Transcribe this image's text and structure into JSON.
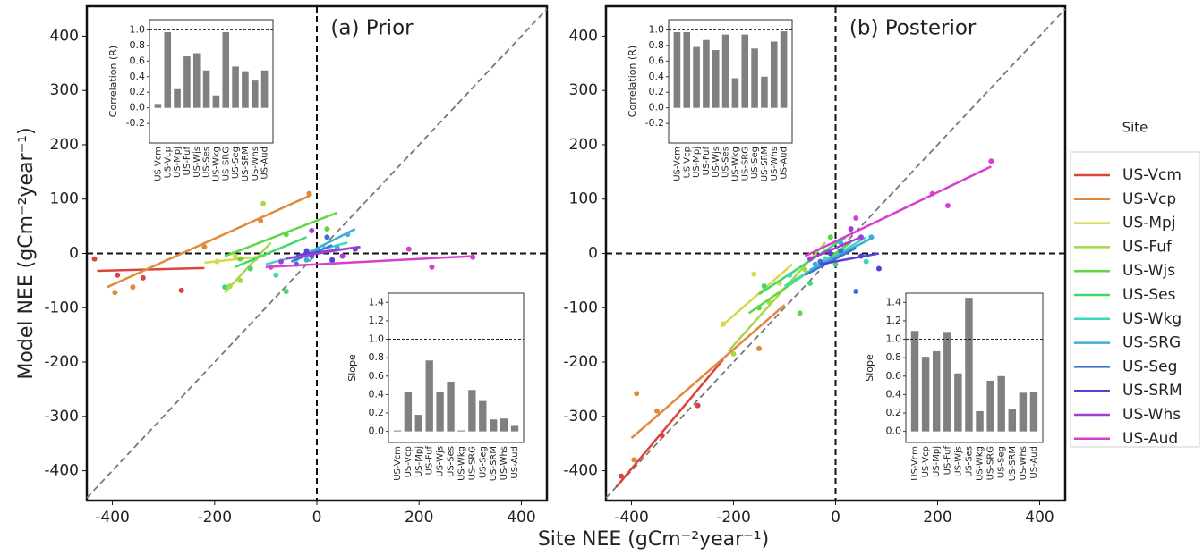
{
  "chart_data": [
    {
      "type": "scatter",
      "title": "(a) Prior",
      "xlabel": "Site NEE (gCm⁻²year⁻¹)",
      "ylabel": "Model NEE (gCm⁻²year⁻¹)",
      "xlim": [
        -450,
        450
      ],
      "ylim": [
        -455,
        455
      ],
      "xticks": [
        -400,
        -200,
        0,
        200,
        400
      ],
      "yticks": [
        -400,
        -300,
        -200,
        -100,
        0,
        100,
        200,
        300,
        400
      ],
      "series": [
        {
          "name": "US-Vcm",
          "color": "#d9453a",
          "x": [
            -435,
            -390,
            -340,
            -265
          ],
          "values": [
            -10,
            -40,
            -45,
            -68
          ],
          "fit_x": [
            -430,
            -220
          ],
          "fit_values": [
            -32,
            -27
          ]
        },
        {
          "name": "US-Vcp",
          "color": "#e08a3c",
          "x": [
            -395,
            -360,
            -220,
            -110,
            -15
          ],
          "values": [
            -72,
            -62,
            12,
            60,
            110
          ],
          "fit_x": [
            -410,
            -10
          ],
          "fit_values": [
            -62,
            108
          ]
        },
        {
          "name": "US-Mpj",
          "color": "#d8d84a",
          "x": [
            -195,
            -160,
            -120
          ],
          "values": [
            -15,
            -5,
            -10
          ],
          "fit_x": [
            -220,
            -100
          ],
          "fit_values": [
            -17,
            -5
          ]
        },
        {
          "name": "US-Fuf",
          "color": "#a8d84a",
          "x": [
            -170,
            -150,
            -105
          ],
          "values": [
            -60,
            -50,
            92
          ],
          "fit_x": [
            -180,
            -90
          ],
          "fit_values": [
            -72,
            20
          ]
        },
        {
          "name": "US-Wjs",
          "color": "#5fd83e",
          "x": [
            -150,
            -60,
            20
          ],
          "values": [
            -10,
            35,
            45
          ],
          "fit_x": [
            -180,
            40
          ],
          "fit_values": [
            -5,
            75
          ]
        },
        {
          "name": "US-Ses",
          "color": "#3ed86e",
          "x": [
            -180,
            -130,
            -60
          ],
          "values": [
            -62,
            -28,
            -70
          ],
          "fit_x": [
            -160,
            -20
          ],
          "fit_values": [
            -25,
            30
          ]
        },
        {
          "name": "US-Wkg",
          "color": "#3ed8c2",
          "x": [
            -80,
            -40,
            30
          ],
          "values": [
            -40,
            -10,
            -15
          ],
          "fit_x": [
            -100,
            60
          ],
          "fit_values": [
            -20,
            20
          ]
        },
        {
          "name": "US-SRG",
          "color": "#3eaed8",
          "x": [
            -20,
            40,
            60
          ],
          "values": [
            -12,
            10,
            35
          ],
          "fit_x": [
            -30,
            75
          ],
          "fit_values": [
            -5,
            45
          ]
        },
        {
          "name": "US-Seg",
          "color": "#3e6ed8",
          "x": [
            -40,
            -10,
            20
          ],
          "values": [
            -20,
            -5,
            30
          ],
          "fit_x": [
            -50,
            30
          ],
          "fit_values": [
            -15,
            15
          ]
        },
        {
          "name": "US-SRM",
          "color": "#5a3ed8",
          "x": [
            -20,
            30,
            75
          ],
          "values": [
            5,
            -12,
            8
          ],
          "fit_x": [
            -40,
            85
          ],
          "fit_values": [
            -3,
            12
          ]
        },
        {
          "name": "US-Whs",
          "color": "#a03ed8",
          "x": [
            -70,
            -10,
            50
          ],
          "values": [
            -15,
            42,
            -5
          ],
          "fit_x": [
            -60,
            80
          ],
          "fit_values": [
            -10,
            12
          ]
        },
        {
          "name": "US-Aud",
          "color": "#d83ed0",
          "x": [
            -90,
            180,
            225,
            305
          ],
          "values": [
            -25,
            8,
            -25,
            -7
          ],
          "fit_x": [
            -100,
            305
          ],
          "fit_values": [
            -25,
            -5
          ]
        }
      ]
    },
    {
      "type": "scatter",
      "title": "(b) Posterior",
      "legend_title": "Site",
      "xlim": [
        -450,
        450
      ],
      "ylim": [
        -455,
        455
      ],
      "xticks": [
        -400,
        -200,
        0,
        200,
        400
      ],
      "yticks": [
        -400,
        -300,
        -200,
        -100,
        0,
        100,
        200,
        300,
        400
      ],
      "series": [
        {
          "name": "US-Vcm",
          "color": "#d9453a",
          "x": [
            -420,
            -340,
            -270
          ],
          "values": [
            -410,
            -335,
            -280
          ],
          "fit_x": [
            -430,
            -220
          ],
          "fit_values": [
            -430,
            -195
          ]
        },
        {
          "name": "US-Vcp",
          "color": "#e08a3c",
          "x": [
            -395,
            -390,
            -350,
            -150
          ],
          "values": [
            -380,
            -258,
            -290,
            -175
          ],
          "fit_x": [
            -400,
            -100
          ],
          "fit_values": [
            -340,
            -95
          ]
        },
        {
          "name": "US-Mpj",
          "color": "#d8d84a",
          "x": [
            -220,
            -160,
            -110
          ],
          "values": [
            -130,
            -38,
            -55
          ],
          "fit_x": [
            -225,
            -85
          ],
          "fit_values": [
            -135,
            -20
          ]
        },
        {
          "name": "US-Fuf",
          "color": "#a8d84a",
          "x": [
            -200,
            -130,
            -60
          ],
          "values": [
            -185,
            -90,
            -30
          ],
          "fit_x": [
            -210,
            -20
          ],
          "fit_values": [
            -180,
            20
          ]
        },
        {
          "name": "US-Wjs",
          "color": "#5fd83e",
          "x": [
            -150,
            -70,
            -10
          ],
          "values": [
            -100,
            -110,
            30
          ],
          "fit_x": [
            -170,
            30
          ],
          "fit_values": [
            -110,
            20
          ]
        },
        {
          "name": "US-Ses",
          "color": "#3ed86e",
          "x": [
            -140,
            -50,
            0
          ],
          "values": [
            -60,
            -55,
            -20
          ],
          "fit_x": [
            -150,
            20
          ],
          "fit_values": [
            -75,
            30
          ]
        },
        {
          "name": "US-Wkg",
          "color": "#3ed8c2",
          "x": [
            -90,
            -20,
            60
          ],
          "values": [
            -40,
            -10,
            -15
          ],
          "fit_x": [
            -100,
            60
          ],
          "fit_values": [
            -60,
            30
          ]
        },
        {
          "name": "US-SRG",
          "color": "#3eaed8",
          "x": [
            -40,
            10,
            70
          ],
          "values": [
            -20,
            20,
            30
          ],
          "fit_x": [
            -50,
            75
          ],
          "fit_values": [
            -30,
            30
          ]
        },
        {
          "name": "US-Seg",
          "color": "#3e6ed8",
          "x": [
            -30,
            40,
            10
          ],
          "values": [
            -15,
            -70,
            5
          ],
          "fit_x": [
            -60,
            40
          ],
          "fit_values": [
            -40,
            10
          ]
        },
        {
          "name": "US-SRM",
          "color": "#5a3ed8",
          "x": [
            -10,
            50,
            85
          ],
          "values": [
            0,
            -5,
            -28
          ],
          "fit_x": [
            -30,
            85
          ],
          "fit_values": [
            -20,
            0
          ]
        },
        {
          "name": "US-Whs",
          "color": "#a03ed8",
          "x": [
            -50,
            30,
            50
          ],
          "values": [
            -10,
            45,
            30
          ],
          "fit_x": [
            -50,
            50
          ],
          "fit_values": [
            -10,
            30
          ]
        },
        {
          "name": "US-Aud",
          "color": "#d83ed0",
          "x": [
            40,
            190,
            220,
            305
          ],
          "values": [
            65,
            110,
            88,
            170
          ],
          "fit_x": [
            -60,
            305
          ],
          "fit_values": [
            -5,
            160
          ]
        }
      ]
    },
    {
      "type": "bar",
      "ylabel": "Correlation (R)",
      "color": "#808080",
      "hline": 1.0,
      "ylim": [
        -0.45,
        1.13
      ],
      "yticks": [
        -0.2,
        {
          "value": 0,
          "label": "0.0"
        },
        0.2,
        0.4,
        0.6,
        0.8,
        {
          "value": 1,
          "label": "1.0"
        }
      ],
      "categories": [
        "US-Vcm",
        "US-Vcp",
        "US-Mpj",
        "US-Fuf",
        "US-Wjs",
        "US-Ses",
        "US-Wkg",
        "US-SRG",
        "US-Seg",
        "US-SRM",
        "US-Whs",
        "US-Aud"
      ],
      "values": [
        0.05,
        0.97,
        0.24,
        0.66,
        0.7,
        0.48,
        0.16,
        0.97,
        0.53,
        0.47,
        0.35,
        0.48
      ]
    },
    {
      "type": "bar",
      "ylabel": "Slope",
      "color": "#808080",
      "hline": 1.0,
      "ylim": [
        -0.12,
        1.5
      ],
      "yticks": [
        {
          "value": 0,
          "label": "0.0"
        },
        0.2,
        0.4,
        0.6,
        0.8,
        {
          "value": 1,
          "label": "1.0"
        },
        1.2,
        1.4
      ],
      "categories": [
        "US-Vcm",
        "US-Vcp",
        "US-Mpj",
        "US-Fuf",
        "US-Wjs",
        "US-Ses",
        "US-Wkg",
        "US-SRG",
        "US-Seg",
        "US-SRM",
        "US-Whs",
        "US-Aud"
      ],
      "values": [
        0.01,
        0.43,
        0.18,
        0.77,
        0.43,
        0.54,
        0.01,
        0.45,
        0.33,
        0.13,
        0.14,
        0.06
      ]
    },
    {
      "type": "bar",
      "ylabel": "Correlation (R)",
      "color": "#808080",
      "hline": 1.0,
      "ylim": [
        -0.45,
        1.13
      ],
      "yticks": [
        -0.2,
        {
          "value": 0,
          "label": "0.0"
        },
        0.2,
        0.4,
        0.6,
        0.8,
        {
          "value": 1,
          "label": "1.0"
        }
      ],
      "categories": [
        "US-Vcm",
        "US-Vcp",
        "US-Mpj",
        "US-Fuf",
        "US-Wjs",
        "US-Ses",
        "US-Wkg",
        "US-SRG",
        "US-Seg",
        "US-SRM",
        "US-Whs",
        "US-Aud"
      ],
      "values": [
        0.97,
        0.97,
        0.78,
        0.87,
        0.74,
        0.94,
        0.38,
        0.94,
        0.76,
        0.4,
        0.85,
        0.98
      ]
    },
    {
      "type": "bar",
      "ylabel": "Slope",
      "color": "#808080",
      "hline": 1.0,
      "ylim": [
        -0.12,
        1.5
      ],
      "yticks": [
        {
          "value": 0,
          "label": "0.0"
        },
        0.2,
        0.4,
        0.6,
        0.8,
        {
          "value": 1,
          "label": "1.0"
        },
        1.2,
        1.4
      ],
      "categories": [
        "US-Vcm",
        "US-Vcp",
        "US-Mpj",
        "US-Fuf",
        "US-Wjs",
        "US-Ses",
        "US-Wkg",
        "US-SRG",
        "US-Seg",
        "US-SRM",
        "US-Whs",
        "US-Aud"
      ],
      "values": [
        1.09,
        0.81,
        0.87,
        1.08,
        0.63,
        1.45,
        0.22,
        0.55,
        0.6,
        0.24,
        0.42,
        0.43
      ]
    }
  ]
}
